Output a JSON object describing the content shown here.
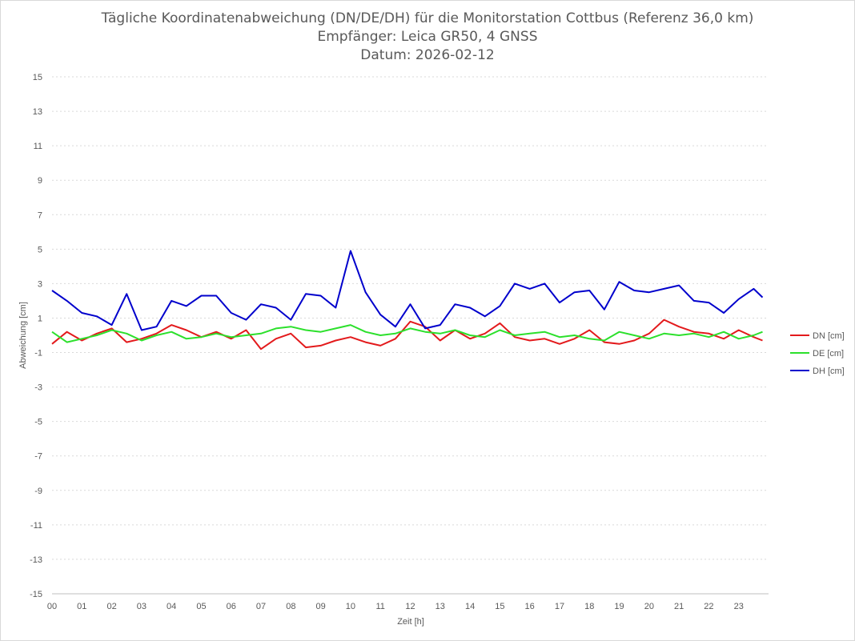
{
  "chart_data": {
    "type": "line",
    "title_lines": [
      "Tägliche Koordinatenabweichung (DN/DE/DH) für die Monitorstation Cottbus (Referenz 36,0 km)",
      "Empfänger: Leica GR50, 4 GNSS",
      "Datum: 2026-02-12"
    ],
    "xlabel": "Zeit [h]",
    "ylabel": "Abweichung [cm]",
    "xlim": [
      0,
      24
    ],
    "ylim": [
      -15,
      15
    ],
    "y_ticks": [
      "15",
      "13",
      "11",
      "9",
      "7",
      "5",
      "3",
      "1",
      "-1",
      "-3",
      "-5",
      "-7",
      "-9",
      "-11",
      "-13",
      "-15"
    ],
    "x_ticks": [
      "00",
      "01",
      "02",
      "03",
      "04",
      "05",
      "06",
      "07",
      "08",
      "09",
      "10",
      "11",
      "12",
      "13",
      "14",
      "15",
      "16",
      "17",
      "18",
      "19",
      "20",
      "21",
      "22",
      "23"
    ],
    "grid": "horizontal dotted",
    "legend_position": "right",
    "x": [
      0.0,
      0.5,
      1.0,
      1.5,
      2.0,
      2.5,
      3.0,
      3.5,
      4.0,
      4.5,
      5.0,
      5.5,
      6.0,
      6.5,
      7.0,
      7.5,
      8.0,
      8.5,
      9.0,
      9.5,
      10.0,
      10.5,
      11.0,
      11.5,
      12.0,
      12.5,
      13.0,
      13.5,
      14.0,
      14.5,
      15.0,
      15.5,
      16.0,
      16.5,
      17.0,
      17.5,
      18.0,
      18.5,
      19.0,
      19.5,
      20.0,
      20.5,
      21.0,
      21.5,
      22.0,
      22.5,
      23.0,
      23.5,
      23.8
    ],
    "series": [
      {
        "name": "DN [cm]",
        "color": "#e31a1c",
        "values": [
          -0.5,
          0.2,
          -0.3,
          0.1,
          0.4,
          -0.4,
          -0.2,
          0.1,
          0.6,
          0.3,
          -0.1,
          0.2,
          -0.2,
          0.3,
          -0.8,
          -0.2,
          0.1,
          -0.7,
          -0.6,
          -0.3,
          -0.1,
          -0.4,
          -0.6,
          -0.2,
          0.8,
          0.5,
          -0.3,
          0.3,
          -0.2,
          0.1,
          0.7,
          -0.1,
          -0.3,
          -0.2,
          -0.5,
          -0.2,
          0.3,
          -0.4,
          -0.5,
          -0.3,
          0.1,
          0.9,
          0.5,
          0.2,
          0.1,
          -0.2,
          0.3,
          -0.1,
          -0.3
        ]
      },
      {
        "name": "DE [cm]",
        "color": "#2ce02c",
        "values": [
          0.2,
          -0.4,
          -0.2,
          0.0,
          0.3,
          0.1,
          -0.3,
          0.0,
          0.2,
          -0.2,
          -0.1,
          0.1,
          -0.1,
          0.0,
          0.1,
          0.4,
          0.5,
          0.3,
          0.2,
          0.4,
          0.6,
          0.2,
          0.0,
          0.1,
          0.4,
          0.2,
          0.1,
          0.3,
          0.0,
          -0.1,
          0.3,
          0.0,
          0.1,
          0.2,
          -0.1,
          0.0,
          -0.2,
          -0.3,
          0.2,
          0.0,
          -0.2,
          0.1,
          0.0,
          0.1,
          -0.1,
          0.2,
          -0.2,
          0.0,
          0.2
        ]
      },
      {
        "name": "DH [cm]",
        "color": "#0000cc",
        "values": [
          2.6,
          2.0,
          1.3,
          1.1,
          0.6,
          2.4,
          0.3,
          0.5,
          2.0,
          1.7,
          2.3,
          2.3,
          1.3,
          0.9,
          1.8,
          1.6,
          0.9,
          2.4,
          2.3,
          1.6,
          4.9,
          2.5,
          1.2,
          0.5,
          1.8,
          0.4,
          0.6,
          1.8,
          1.6,
          1.1,
          1.7,
          3.0,
          2.7,
          3.0,
          1.9,
          2.5,
          2.6,
          1.5,
          3.1,
          2.6,
          2.5,
          2.7,
          2.9,
          2.0,
          1.9,
          1.3,
          2.1,
          2.7,
          2.2
        ]
      }
    ]
  }
}
